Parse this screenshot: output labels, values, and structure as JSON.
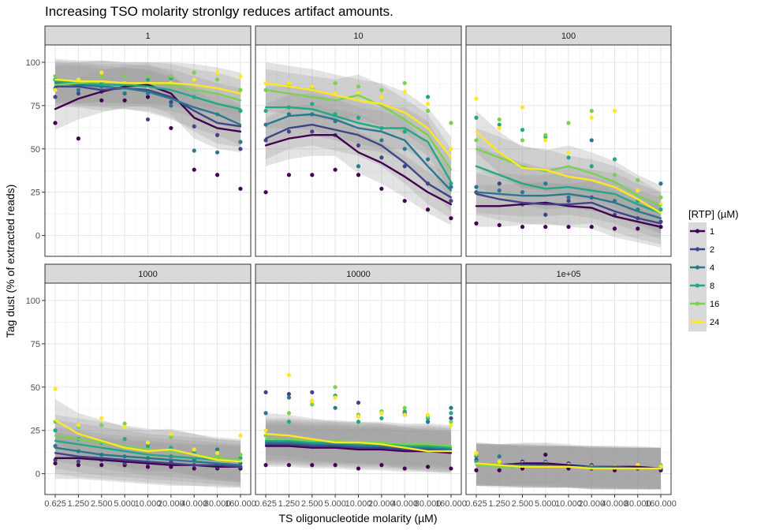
{
  "chart_data": {
    "type": "scatter",
    "title": "Increasing TSO molarity stronlgy reduces artifact amounts.",
    "xlabel": "TS oligonucleotide molarity (µM)",
    "ylabel": "Tag dust (% of extracted reads)",
    "x_tick_labels": [
      "0.625",
      "1.250",
      "2.500",
      "5.000",
      "10.000",
      "20.000",
      "40.000",
      "80.000",
      "160.000"
    ],
    "y_ticks": [
      0,
      25,
      50,
      75,
      100
    ],
    "ylim": [
      -12,
      110
    ],
    "grid": true,
    "facet_title": "[RNA]",
    "legend": {
      "title": "[RTP] (µM)",
      "position": "right",
      "entries": [
        {
          "label": "1",
          "color": "#440154"
        },
        {
          "label": "2",
          "color": "#414487"
        },
        {
          "label": "4",
          "color": "#2A788E"
        },
        {
          "label": "8",
          "color": "#22A884"
        },
        {
          "label": "16",
          "color": "#7AD151"
        },
        {
          "label": "24",
          "color": "#FDE725"
        }
      ]
    },
    "panels": [
      {
        "strip": "1",
        "series": [
          {
            "name": "1",
            "values": [
              73,
              79,
              83,
              86,
              87,
              82,
              68,
              62,
              60
            ]
          },
          {
            "name": "2",
            "values": [
              86,
              86,
              84,
              85,
              84,
              80,
              72,
              65,
              63
            ]
          },
          {
            "name": "4",
            "values": [
              88,
              87,
              86,
              85,
              83,
              79,
              74,
              70,
              64
            ]
          },
          {
            "name": "8",
            "values": [
              89,
              88,
              87,
              87,
              86,
              84,
              80,
              76,
              73
            ]
          },
          {
            "name": "16",
            "values": [
              87,
              88,
              89,
              88,
              88,
              87,
              84,
              82,
              78
            ]
          },
          {
            "name": "24",
            "values": [
              90,
              89,
              89,
              88,
              88,
              88,
              87,
              85,
              82
            ]
          }
        ],
        "points": [
          {
            "series": "1",
            "values": [
              65,
              56,
              78,
              78,
              80,
              62,
              38,
              35,
              27
            ]
          },
          {
            "series": "2",
            "values": [
              80,
              82,
              83,
              82,
              67,
              77,
              63,
              58,
              50
            ]
          },
          {
            "series": "4",
            "values": [
              85,
              84,
              86,
              82,
              82,
              75,
              49,
              48,
              54
            ]
          },
          {
            "series": "8",
            "values": [
              90,
              88,
              88,
              92,
              90,
              91,
              80,
              70,
              72
            ]
          },
          {
            "series": "16",
            "values": [
              92,
              90,
              92,
              92,
              92,
              92,
              94,
              90,
              84
            ]
          },
          {
            "series": "24",
            "values": [
              84,
              90,
              94,
              88,
              86,
              88,
              90,
              94,
              92
            ]
          }
        ]
      },
      {
        "strip": "10",
        "series": [
          {
            "name": "1",
            "values": [
              52,
              56,
              58,
              58,
              48,
              42,
              34,
              25,
              18
            ]
          },
          {
            "name": "2",
            "values": [
              56,
              62,
              64,
              61,
              58,
              52,
              42,
              30,
              22
            ]
          },
          {
            "name": "4",
            "values": [
              64,
              69,
              70,
              67,
              62,
              60,
              55,
              40,
              26
            ]
          },
          {
            "name": "8",
            "values": [
              74,
              74,
              73,
              69,
              65,
              62,
              62,
              54,
              31
            ]
          },
          {
            "name": "16",
            "values": [
              84,
              82,
              80,
              78,
              81,
              75,
              67,
              58,
              38
            ]
          },
          {
            "name": "24",
            "values": [
              88,
              86,
              84,
              81,
              78,
              76,
              71,
              62,
              45
            ]
          }
        ],
        "points": [
          {
            "series": "1",
            "values": [
              25,
              35,
              35,
              38,
              35,
              27,
              20,
              15,
              10
            ]
          },
          {
            "series": "2",
            "values": [
              55,
              60,
              60,
              58,
              52,
              45,
              40,
              30,
              20
            ]
          },
          {
            "series": "4",
            "values": [
              64,
              70,
              70,
              66,
              40,
              55,
              50,
              44,
              28
            ]
          },
          {
            "series": "8",
            "values": [
              72,
              74,
              76,
              70,
              68,
              62,
              60,
              80,
              30
            ]
          },
          {
            "series": "16",
            "values": [
              84,
              86,
              85,
              88,
              86,
              84,
              88,
              72,
              65
            ]
          },
          {
            "series": "24",
            "values": [
              88,
              88,
              86,
              82,
              82,
              80,
              83,
              76,
              50
            ]
          }
        ]
      },
      {
        "strip": "100",
        "series": [
          {
            "name": "1",
            "values": [
              17,
              17,
              18,
              19,
              17,
              16,
              11,
              8,
              5
            ]
          },
          {
            "name": "2",
            "values": [
              24,
              21,
              19,
              18,
              18,
              19,
              14,
              10,
              7
            ]
          },
          {
            "name": "4",
            "values": [
              25,
              24,
              23,
              23,
              24,
              22,
              19,
              14,
              10
            ]
          },
          {
            "name": "8",
            "values": [
              40,
              35,
              30,
              27,
              28,
              26,
              24,
              18,
              13
            ]
          },
          {
            "name": "16",
            "values": [
              50,
              45,
              40,
              37,
              40,
              36,
              31,
              23,
              17
            ]
          },
          {
            "name": "24",
            "values": [
              60,
              48,
              39,
              38,
              34,
              32,
              28,
              21,
              13
            ]
          }
        ],
        "points": [
          {
            "series": "1",
            "values": [
              7,
              6,
              5,
              5,
              5,
              5,
              4,
              4,
              5
            ]
          },
          {
            "series": "2",
            "values": [
              25,
              30,
              18,
              12,
              20,
              22,
              12,
              10,
              8
            ]
          },
          {
            "series": "4",
            "values": [
              28,
              26,
              25,
              30,
              22,
              55,
              20,
              15,
              30
            ]
          },
          {
            "series": "8",
            "values": [
              68,
              64,
              61,
              57,
              45,
              40,
              44,
              20,
              15
            ]
          },
          {
            "series": "16",
            "values": [
              55,
              67,
              55,
              58,
              65,
              72,
              35,
              32,
              22
            ]
          },
          {
            "series": "24",
            "values": [
              79,
              62,
              74,
              55,
              48,
              68,
              72,
              26,
              18
            ]
          }
        ]
      },
      {
        "strip": "1000",
        "series": [
          {
            "name": "1",
            "values": [
              9,
              9,
              8,
              7,
              6,
              5,
              5,
              4,
              4
            ]
          },
          {
            "name": "2",
            "values": [
              12,
              10,
              9,
              8,
              7,
              6,
              5,
              5,
              4
            ]
          },
          {
            "name": "4",
            "values": [
              15,
              13,
              11,
              10,
              9,
              8,
              7,
              6,
              5
            ]
          },
          {
            "name": "8",
            "values": [
              19,
              17,
              15,
              13,
              11,
              10,
              9,
              8,
              7
            ]
          },
          {
            "name": "16",
            "values": [
              22,
              20,
              18,
              16,
              14,
              13,
              11,
              9,
              8
            ]
          },
          {
            "name": "24",
            "values": [
              31,
              23,
              19,
              15,
              13,
              14,
              11,
              8,
              7
            ]
          }
        ],
        "points": [
          {
            "series": "1",
            "values": [
              6,
              5,
              5,
              5,
              4,
              4,
              3,
              3,
              3
            ]
          },
          {
            "series": "2",
            "values": [
              8,
              7,
              8,
              6,
              6,
              7,
              5,
              4,
              4
            ]
          },
          {
            "series": "4",
            "values": [
              16,
              13,
              11,
              10,
              9,
              10,
              8,
              14,
              6
            ]
          },
          {
            "series": "8",
            "values": [
              25,
              20,
              18,
              20,
              16,
              15,
              12,
              10,
              9
            ]
          },
          {
            "series": "16",
            "values": [
              30,
              27,
              28,
              29,
              18,
              21,
              14,
              10,
              11
            ]
          },
          {
            "series": "24",
            "values": [
              49,
              28,
              32,
              27,
              18,
              23,
              14,
              12,
              22
            ]
          }
        ]
      },
      {
        "strip": "10000",
        "series": [
          {
            "name": "1",
            "values": [
              16,
              16,
              15,
              15,
              14,
              14,
              13,
              13,
              12
            ]
          },
          {
            "name": "2",
            "values": [
              17,
              17,
              16,
              16,
              15,
              15,
              14,
              14,
              13
            ]
          },
          {
            "name": "4",
            "values": [
              18,
              18,
              17,
              17,
              16,
              16,
              15,
              15,
              14
            ]
          },
          {
            "name": "8",
            "values": [
              19,
              19,
              18,
              18,
              17,
              17,
              16,
              16,
              15
            ]
          },
          {
            "name": "16",
            "values": [
              20,
              20,
              19,
              19,
              18,
              18,
              17,
              17,
              16
            ]
          },
          {
            "name": "24",
            "values": [
              23,
              22,
              20,
              18,
              18,
              17,
              15,
              13,
              13
            ]
          }
        ],
        "points": [
          {
            "series": "1",
            "values": [
              5,
              5,
              5,
              5,
              3,
              5,
              3,
              4,
              3
            ]
          },
          {
            "series": "2",
            "values": [
              47,
              46,
              47,
              45,
              41,
              35,
              35,
              30,
              32
            ]
          },
          {
            "series": "4",
            "values": [
              35,
              44,
              42,
              38,
              34,
              36,
              34,
              30,
              38
            ]
          },
          {
            "series": "8",
            "values": [
              25,
              30,
              40,
              45,
              30,
              32,
              36,
              32,
              35
            ]
          },
          {
            "series": "16",
            "values": [
              22,
              35,
              40,
              50,
              34,
              36,
              38,
              33,
              30
            ]
          },
          {
            "series": "24",
            "values": [
              25,
              57,
              42,
              44,
              33,
              35,
              34,
              34,
              28
            ]
          }
        ]
      },
      {
        "strip": "1e+05",
        "series": [
          {
            "name": "1",
            "values": [
              5,
              5,
              6,
              6,
              5,
              4,
              4,
              4,
              3
            ]
          },
          {
            "name": "2",
            "values": [
              5,
              5,
              5,
              5,
              4,
              4,
              4,
              3,
              3
            ]
          },
          {
            "name": "4",
            "values": [
              6,
              5,
              5,
              4,
              4,
              4,
              3,
              3,
              3
            ]
          },
          {
            "name": "8",
            "values": [
              5,
              5,
              4,
              4,
              4,
              3,
              3,
              3,
              3
            ]
          },
          {
            "name": "16",
            "values": [
              5,
              4,
              4,
              4,
              4,
              3,
              3,
              3,
              3
            ]
          },
          {
            "name": "24",
            "values": [
              6,
              5,
              4,
              4,
              4,
              3,
              3,
              3,
              3
            ]
          }
        ],
        "points": [
          {
            "series": "1",
            "values": [
              2,
              2,
              3,
              11,
              3,
              3,
              2,
              3,
              2
            ]
          },
          {
            "series": "2",
            "values": [
              8,
              6,
              7,
              6,
              6,
              5,
              4,
              4,
              3
            ]
          },
          {
            "series": "4",
            "values": [
              10,
              10,
              6,
              7,
              5,
              4,
              4,
              4,
              4
            ]
          },
          {
            "series": "8",
            "values": [
              7,
              5,
              5,
              5,
              5,
              4,
              4,
              4,
              5
            ]
          },
          {
            "series": "16",
            "values": [
              11,
              6,
              5,
              5,
              5,
              4,
              4,
              4,
              5
            ]
          },
          {
            "series": "24",
            "values": [
              12,
              7,
              6,
              6,
              5,
              4,
              4,
              5,
              4
            ]
          }
        ]
      }
    ]
  }
}
